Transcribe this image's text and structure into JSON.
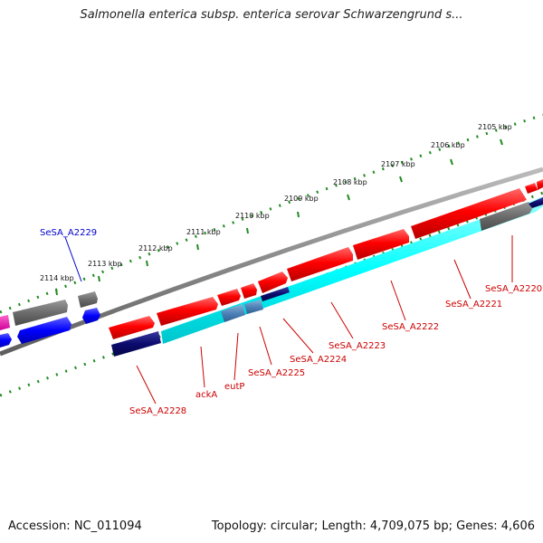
{
  "title": "Salmonella enterica subsp. enterica serovar Schwarzengrund s...",
  "accession_label": "Accession: NC_011094",
  "stats_label": "Topology: circular; Length: 4,709,075 bp; Genes: 4,606",
  "colors": {
    "forward_gene": "#ff0000",
    "reverse_gene": "#0000ff",
    "rna": "#00ffff",
    "backbone": "#808080",
    "ticks": "#228b22",
    "red_label": "#cc0000",
    "blue_label": "#0000cc"
  },
  "kbp_ticks": [
    {
      "kbp": 2105,
      "label": "2105 kbp"
    },
    {
      "kbp": 2106,
      "label": "2106 kbp"
    },
    {
      "kbp": 2107,
      "label": "2107 kbp"
    },
    {
      "kbp": 2108,
      "label": "2108 kbp"
    },
    {
      "kbp": 2109,
      "label": "2109 kbp"
    },
    {
      "kbp": 2110,
      "label": "2110 kbp"
    },
    {
      "kbp": 2111,
      "label": "2111 kbp"
    },
    {
      "kbp": 2112,
      "label": "2112 kbp"
    },
    {
      "kbp": 2113,
      "label": "2113 kbp"
    },
    {
      "kbp": 2114,
      "label": "2114 kbp"
    }
  ],
  "gene_labels": [
    {
      "text": "SeSA_A2220",
      "color": "red"
    },
    {
      "text": "SeSA_A2221",
      "color": "red"
    },
    {
      "text": "SeSA_A2222",
      "color": "red"
    },
    {
      "text": "SeSA_A2223",
      "color": "red"
    },
    {
      "text": "SeSA_A2224",
      "color": "red"
    },
    {
      "text": "SeSA_A2225",
      "color": "red"
    },
    {
      "text": "eutP",
      "color": "red"
    },
    {
      "text": "ackA",
      "color": "red"
    },
    {
      "text": "SeSA_A2228",
      "color": "red"
    },
    {
      "text": "SeSA_A2229",
      "color": "blue"
    }
  ]
}
